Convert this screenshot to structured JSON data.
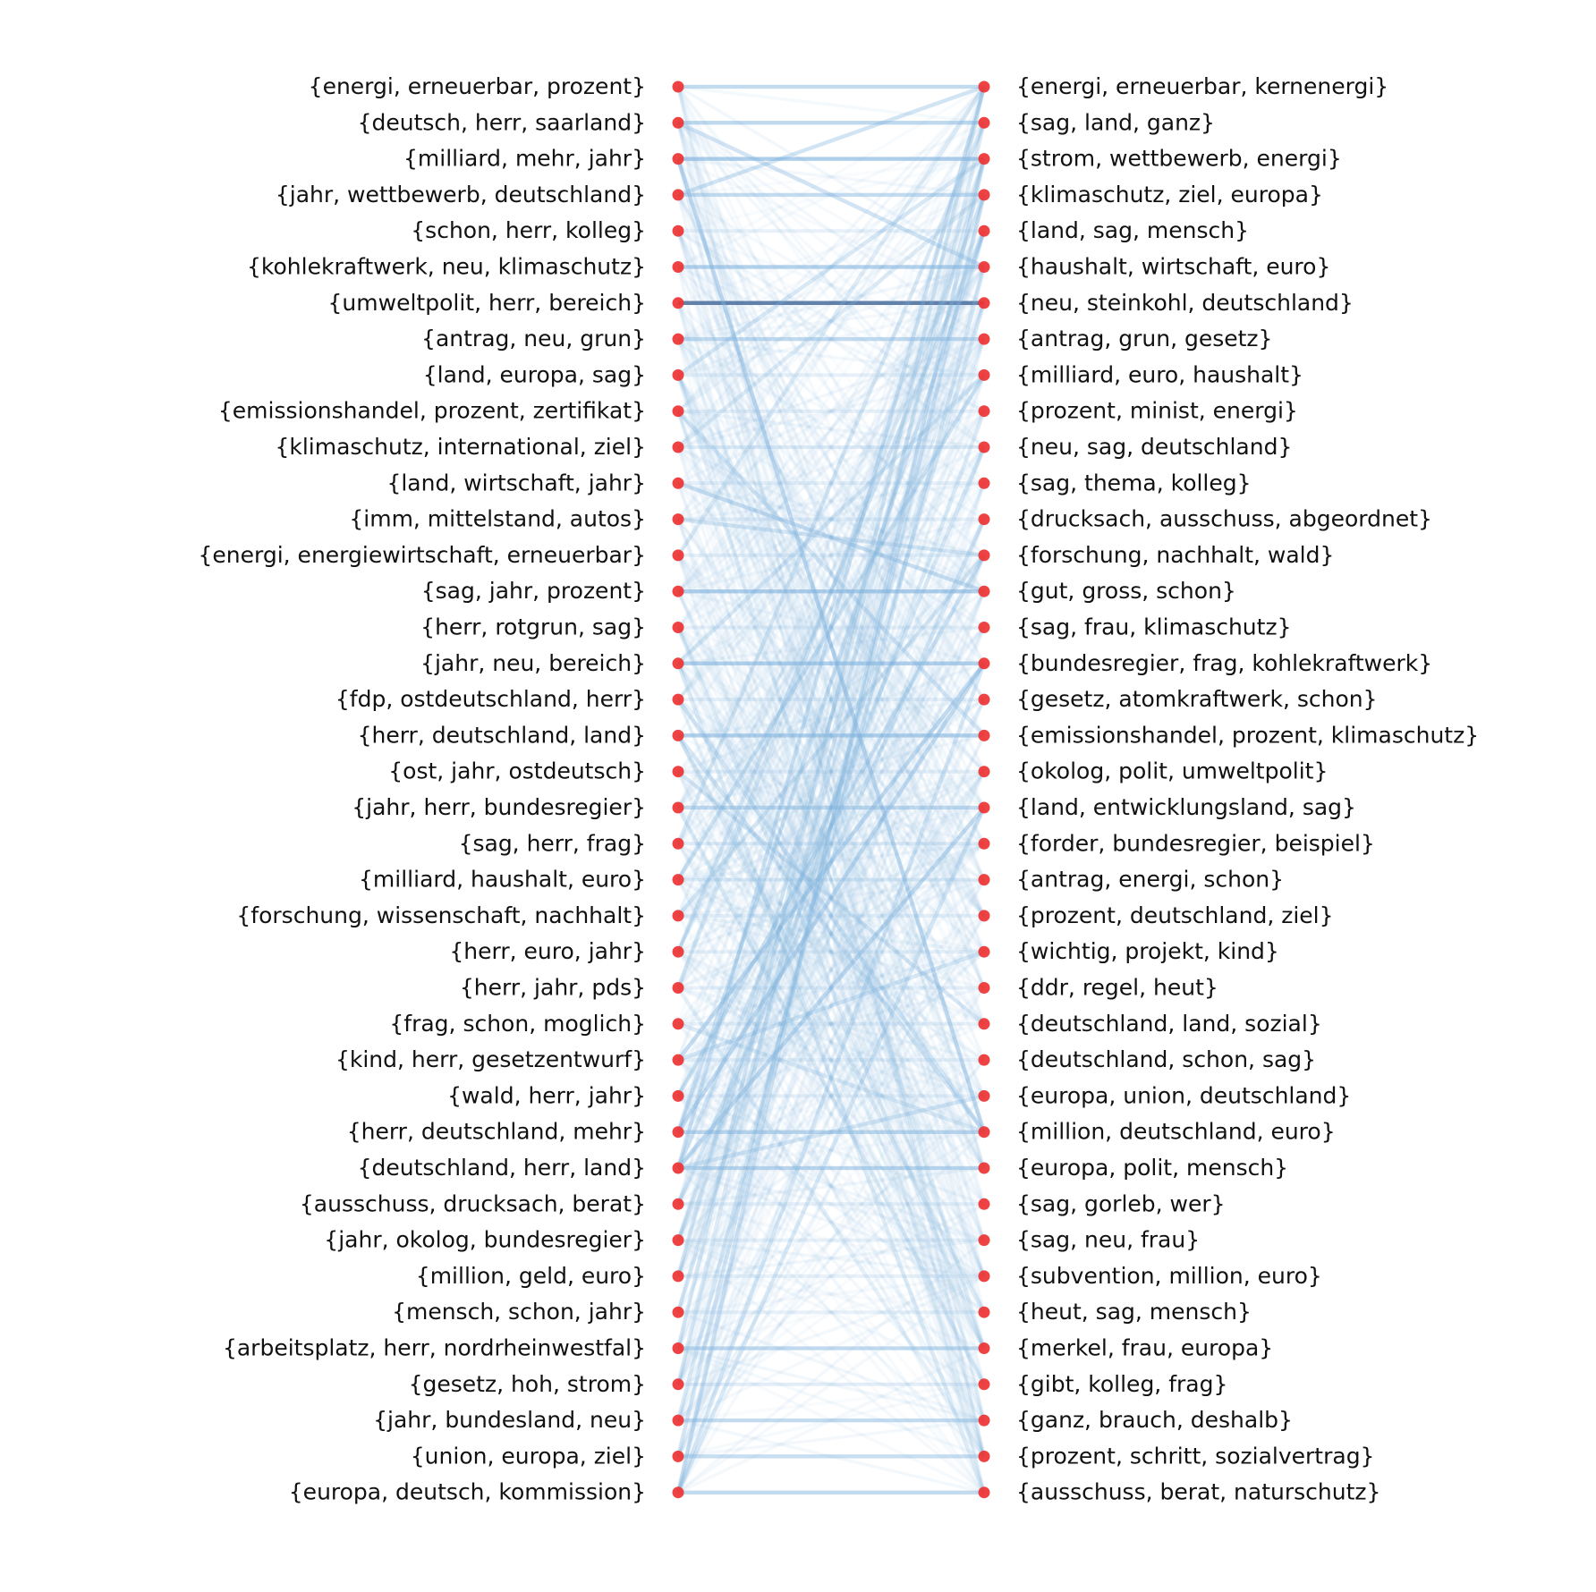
{
  "colors": {
    "node": "#ee3333",
    "edge": "#7fb2dd",
    "edge_strong": "#4c6f9c",
    "text": "#111111"
  },
  "left_topics": [
    "{energi, erneuerbar, prozent}",
    "{deutsch, herr, saarland}",
    "{milliard, mehr, jahr}",
    "{jahr, wettbewerb, deutschland}",
    "{schon, herr, kolleg}",
    "{kohlekraftwerk, neu, klimaschutz}",
    "{umweltpolit, herr, bereich}",
    "{antrag, neu, grun}",
    "{land, europa, sag}",
    "{emissionshandel, prozent, zertifikat}",
    "{klimaschutz, international, ziel}",
    "{land, wirtschaft, jahr}",
    "{imm, mittelstand, autos}",
    "{energi, energiewirtschaft, erneuerbar}",
    "{sag, jahr, prozent}",
    "{herr, rotgrun, sag}",
    "{jahr, neu, bereich}",
    "{fdp, ostdeutschland, herr}",
    "{herr, deutschland, land}",
    "{ost, jahr, ostdeutsch}",
    "{jahr, herr, bundesregier}",
    "{sag, herr, frag}",
    "{milliard, haushalt, euro}",
    "{forschung, wissenschaft, nachhalt}",
    "{herr, euro, jahr}",
    "{herr, jahr, pds}",
    "{frag, schon, moglich}",
    "{kind, herr, gesetzentwurf}",
    "{wald, herr, jahr}",
    "{herr, deutschland, mehr}",
    "{deutschland, herr, land}",
    "{ausschuss, drucksach, berat}",
    "{jahr, okolog, bundesregier}",
    "{million, geld, euro}",
    "{mensch, schon, jahr}",
    "{arbeitsplatz, herr, nordrheinwestfal}",
    "{gesetz, hoh, strom}",
    "{jahr, bundesland, neu}",
    "{union, europa, ziel}",
    "{europa, deutsch, kommission}"
  ],
  "right_topics": [
    "{energi, erneuerbar, kernenergi}",
    "{sag, land, ganz}",
    "{strom, wettbewerb, energi}",
    "{klimaschutz, ziel, europa}",
    "{land, sag, mensch}",
    "{haushalt, wirtschaft, euro}",
    "{neu, steinkohl, deutschland}",
    "{antrag, grun, gesetz}",
    "{milliard, euro, haushalt}",
    "{prozent, minist, energi}",
    "{neu, sag, deutschland}",
    "{sag, thema, kolleg}",
    "{drucksach, ausschuss, abgeordnet}",
    "{forschung, nachhalt, wald}",
    "{gut, gross, schon}",
    "{sag, frau, klimaschutz}",
    "{bundesregier, frag, kohlekraftwerk}",
    "{gesetz, atomkraftwerk, schon}",
    "{emissionshandel, prozent, klimaschutz}",
    "{okolog, polit, umweltpolit}",
    "{land, entwicklungsland, sag}",
    "{forder, bundesregier, beispiel}",
    "{antrag, energi, schon}",
    "{prozent, deutschland, ziel}",
    "{wichtig, projekt, kind}",
    "{ddr, regel, heut}",
    "{deutschland, land, sozial}",
    "{deutschland, schon, sag}",
    "{europa, union, deutschland}",
    "{million, deutschland, euro}",
    "{europa, polit, mensch}",
    "{sag, gorleb, wer}",
    "{sag, neu, frau}",
    "{subvention, million, euro}",
    "{heut, sag, mensch}",
    "{merkel, frau, europa}",
    "{gibt, kolleg, frag}",
    "{ganz, brauch, deshalb}",
    "{prozent, schritt, sozialvertrag}",
    "{ausschuss, berat, naturschutz}"
  ],
  "strong_links": [
    [
      6,
      6,
      0.85
    ],
    [
      2,
      2,
      0.5
    ],
    [
      0,
      0,
      0.35
    ],
    [
      1,
      1,
      0.35
    ],
    [
      3,
      3,
      0.3
    ],
    [
      5,
      5,
      0.45
    ],
    [
      7,
      7,
      0.35
    ],
    [
      14,
      14,
      0.5
    ],
    [
      16,
      16,
      0.5
    ],
    [
      18,
      18,
      0.45
    ],
    [
      20,
      20,
      0.35
    ],
    [
      29,
      29,
      0.4
    ],
    [
      30,
      30,
      0.35
    ],
    [
      35,
      35,
      0.3
    ],
    [
      37,
      37,
      0.3
    ],
    [
      38,
      38,
      0.3
    ],
    [
      39,
      39,
      0.35
    ],
    [
      2,
      29,
      0.45
    ],
    [
      1,
      5,
      0.35
    ],
    [
      3,
      0,
      0.3
    ],
    [
      11,
      14,
      0.35
    ],
    [
      12,
      13,
      0.25
    ],
    [
      8,
      2,
      0.3
    ],
    [
      18,
      29,
      0.3
    ],
    [
      17,
      29,
      0.3
    ],
    [
      16,
      8,
      0.3
    ],
    [
      27,
      16,
      0.45
    ],
    [
      30,
      20,
      0.45
    ],
    [
      29,
      16,
      0.45
    ],
    [
      30,
      28,
      0.3
    ],
    [
      30,
      0,
      0.3
    ],
    [
      39,
      2,
      0.35
    ],
    [
      38,
      3,
      0.3
    ],
    [
      37,
      5,
      0.3
    ],
    [
      30,
      10,
      0.3
    ],
    [
      29,
      4,
      0.3
    ],
    [
      35,
      0,
      0.25
    ],
    [
      36,
      1,
      0.25
    ],
    [
      33,
      2,
      0.25
    ],
    [
      34,
      6,
      0.25
    ],
    [
      32,
      9,
      0.25
    ],
    [
      39,
      16,
      0.3
    ],
    [
      39,
      20,
      0.3
    ],
    [
      25,
      3,
      0.25
    ],
    [
      24,
      4,
      0.25
    ],
    [
      22,
      8,
      0.3
    ],
    [
      28,
      13,
      0.3
    ],
    [
      21,
      1,
      0.25
    ],
    [
      19,
      26,
      0.25
    ],
    [
      23,
      13,
      0.25
    ],
    [
      16,
      39,
      0.25
    ],
    [
      18,
      34,
      0.25
    ],
    [
      15,
      35,
      0.2
    ],
    [
      26,
      29,
      0.25
    ],
    [
      25,
      38,
      0.2
    ],
    [
      9,
      18,
      0.3
    ],
    [
      10,
      3,
      0.25
    ],
    [
      13,
      0,
      0.25
    ],
    [
      8,
      35,
      0.2
    ],
    [
      31,
      12,
      0.3
    ],
    [
      20,
      36,
      0.2
    ],
    [
      27,
      24,
      0.3
    ]
  ]
}
